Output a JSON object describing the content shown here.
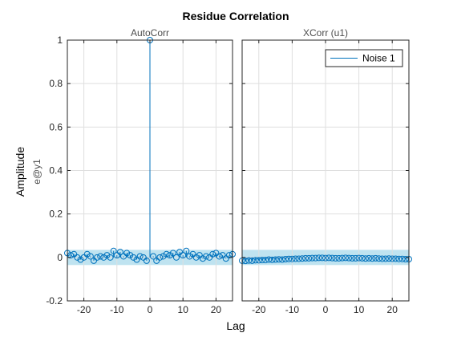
{
  "chart_data": {
    "type": "stem",
    "title": "Residue Correlation",
    "xlabel": "Lag",
    "ylabel": "Amplitude",
    "ylabel_sub": "e@y1",
    "xticks": [
      -20,
      -10,
      0,
      10,
      20
    ],
    "yticks": [
      -0.2,
      0,
      0.2,
      0.4,
      0.6,
      0.8,
      1
    ],
    "ytick_labels": [
      "-0.2",
      "0",
      "0.2",
      "0.4",
      "0.6",
      "0.8",
      "1"
    ],
    "xlim": [
      -25,
      25
    ],
    "ylim": [
      -0.2,
      1
    ],
    "grid": true,
    "colors": {
      "series": "#0072bd",
      "confidence_band": "#bfe3f0",
      "axes": "#262626",
      "grid": "#dfdfdf"
    },
    "panels": [
      {
        "subtitle": "AutoCorr",
        "confidence_band": [
          -0.035,
          0.035
        ],
        "series": [
          {
            "x": [
              -25,
              -24,
              -23,
              -22,
              -21,
              -20,
              -19,
              -18,
              -17,
              -16,
              -15,
              -14,
              -13,
              -12,
              -11,
              -10,
              -9,
              -8,
              -7,
              -6,
              -5,
              -4,
              -3,
              -2,
              -1,
              0,
              1,
              2,
              3,
              4,
              5,
              6,
              7,
              8,
              9,
              10,
              11,
              12,
              13,
              14,
              15,
              16,
              17,
              18,
              19,
              20,
              21,
              22,
              23,
              24,
              25
            ],
            "y": [
              0.02,
              0.01,
              0.015,
              0.0,
              -0.01,
              0.0,
              0.015,
              0.005,
              -0.015,
              0.0,
              0.005,
              0.0,
              0.01,
              0.0,
              0.03,
              0.01,
              0.025,
              0.005,
              0.02,
              0.01,
              0.0,
              -0.01,
              0.005,
              0.0,
              -0.015,
              1.0,
              0.005,
              -0.015,
              0.0,
              0.005,
              0.015,
              0.01,
              0.02,
              0.0,
              0.025,
              0.01,
              0.03,
              0.005,
              0.015,
              0.0,
              0.01,
              -0.005,
              0.005,
              0.0,
              0.015,
              0.02,
              0.005,
              0.01,
              -0.005,
              0.01,
              0.015
            ]
          }
        ]
      },
      {
        "subtitle": "XCorr (u1)",
        "confidence_band": [
          -0.035,
          0.035
        ],
        "legend": {
          "entries": [
            "Noise 1"
          ],
          "position": "top-right"
        },
        "series": [
          {
            "name": "Noise 1",
            "x": [
              -25,
              -24,
              -23,
              -22,
              -21,
              -20,
              -19,
              -18,
              -17,
              -16,
              -15,
              -14,
              -13,
              -12,
              -11,
              -10,
              -9,
              -8,
              -7,
              -6,
              -5,
              -4,
              -3,
              -2,
              -1,
              0,
              1,
              2,
              3,
              4,
              5,
              6,
              7,
              8,
              9,
              10,
              11,
              12,
              13,
              14,
              15,
              16,
              17,
              18,
              19,
              20,
              21,
              22,
              23,
              24,
              25
            ],
            "y": [
              -0.015,
              -0.016,
              -0.014,
              -0.015,
              -0.013,
              -0.013,
              -0.012,
              -0.012,
              -0.01,
              -0.011,
              -0.01,
              -0.009,
              -0.01,
              -0.008,
              -0.007,
              -0.007,
              -0.006,
              -0.006,
              -0.005,
              -0.004,
              -0.004,
              -0.003,
              -0.003,
              -0.002,
              -0.002,
              -0.003,
              -0.002,
              -0.003,
              -0.004,
              -0.004,
              -0.003,
              -0.002,
              -0.003,
              -0.004,
              -0.004,
              -0.003,
              -0.004,
              -0.005,
              -0.004,
              -0.005,
              -0.004,
              -0.005,
              -0.006,
              -0.006,
              -0.005,
              -0.006,
              -0.006,
              -0.007,
              -0.007,
              -0.008,
              -0.008
            ]
          }
        ]
      }
    ]
  }
}
